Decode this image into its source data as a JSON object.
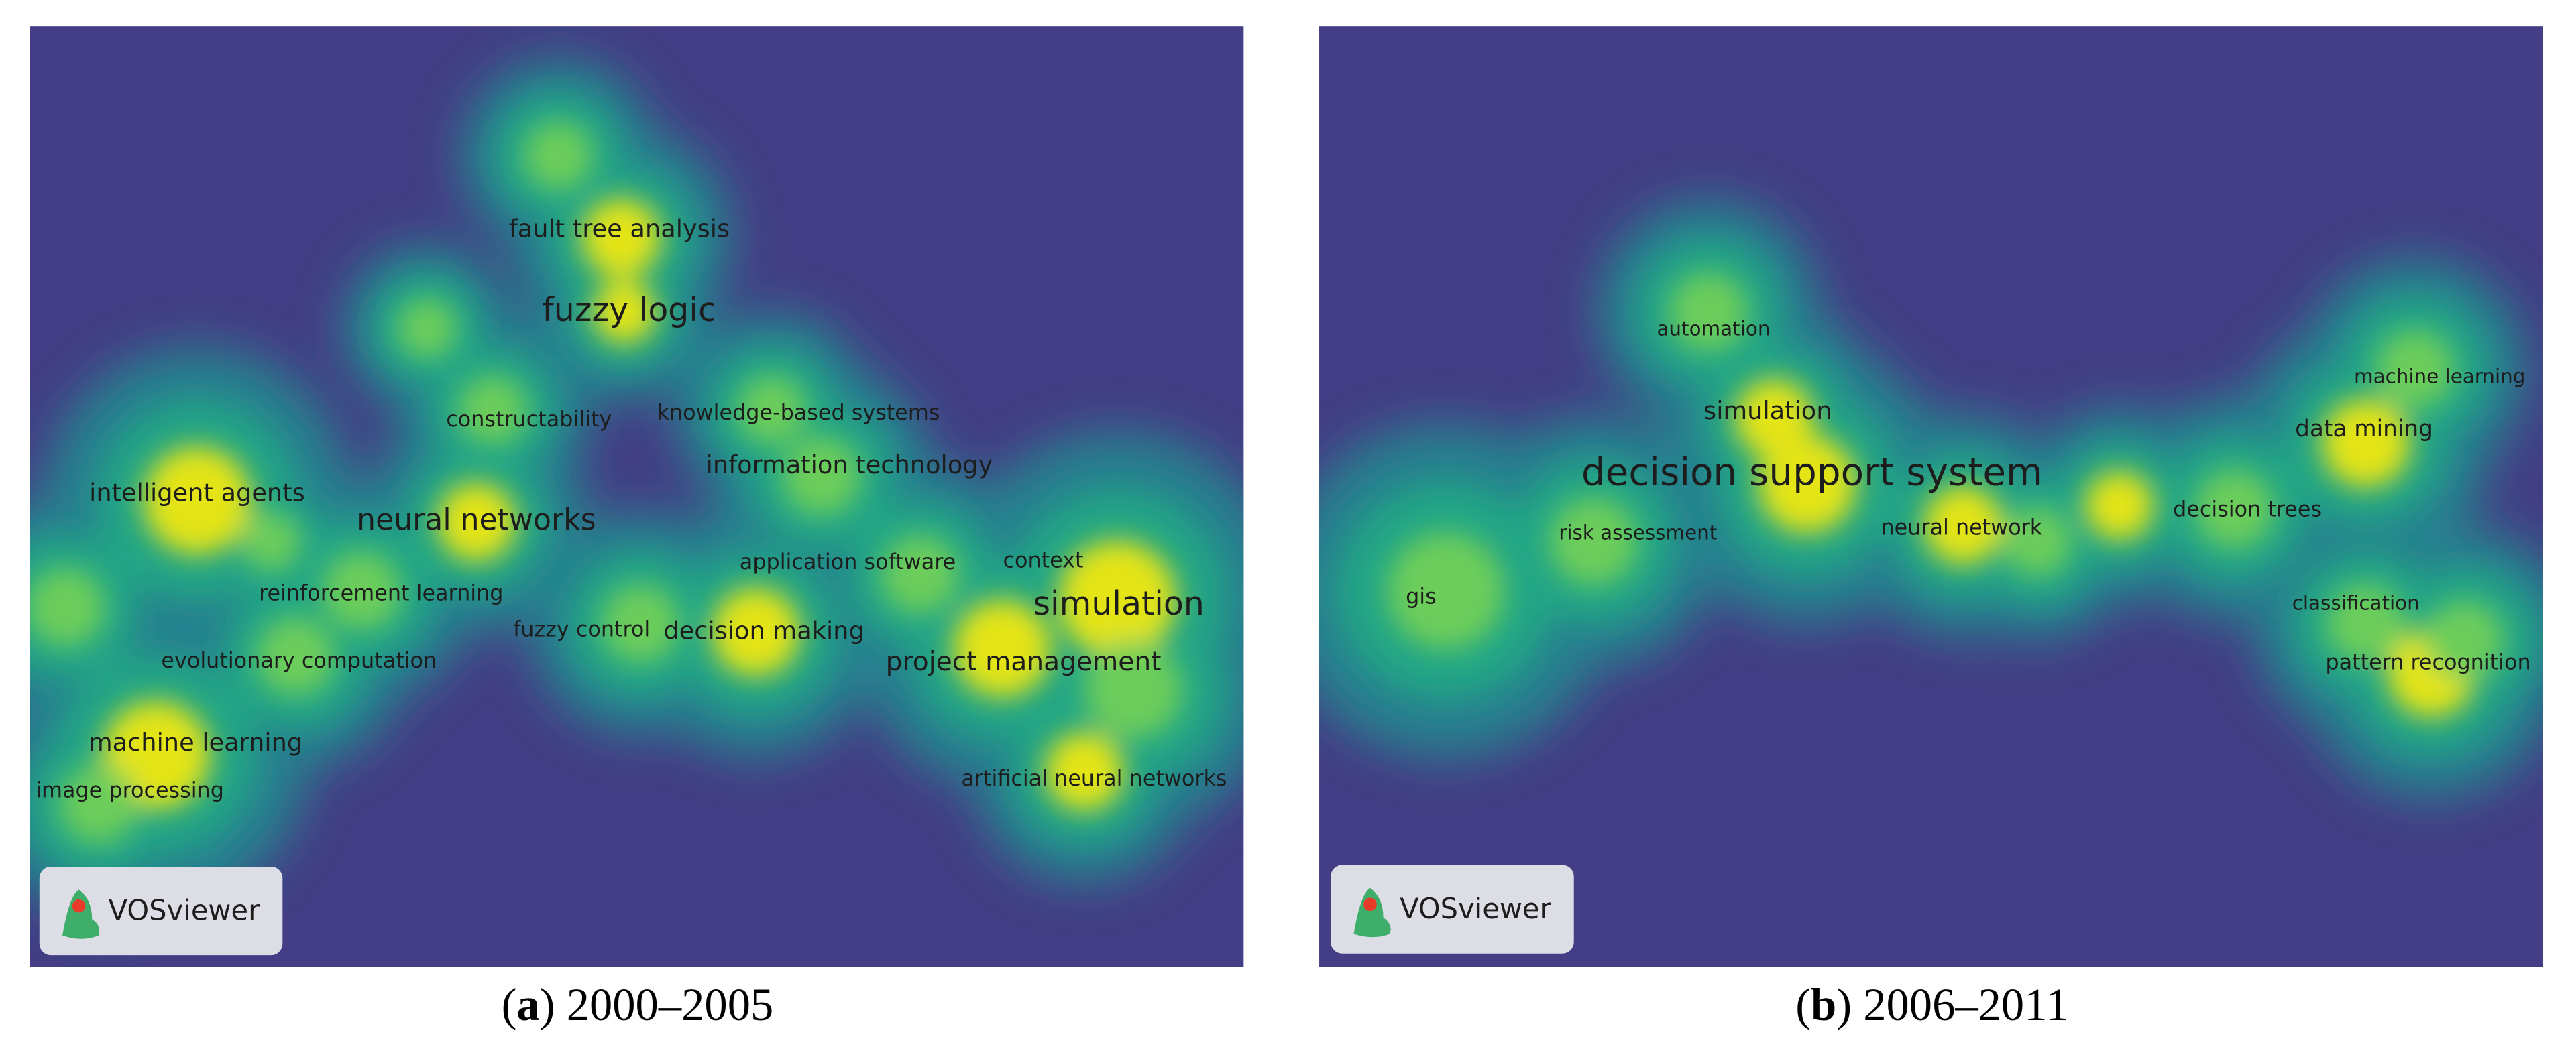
{
  "panels": [
    {
      "terms": [
        "fault tree analysis",
        "fuzzy logic",
        "constructability",
        "knowledge-based systems",
        "information technology",
        "intelligent agents",
        "neural networks",
        "application software",
        "context",
        "simulation",
        "reinforcement learning",
        "fuzzy control",
        "decision making",
        "project management",
        "evolutionary computation",
        "machine learning",
        "image processing",
        "artificial neural networks"
      ],
      "badge": "VOSviewer",
      "caption": {
        "open": "(",
        "letter": "a",
        "rest": ") 2000–2005"
      }
    },
    {
      "terms": [
        "automation",
        "machine learning",
        "simulation",
        "data mining",
        "decision support system",
        "risk assessment",
        "neural network",
        "decision trees",
        "gis",
        "classification",
        "pattern recognition"
      ],
      "badge": "VOSviewer",
      "caption": {
        "open": "(",
        "letter": "b",
        "rest": ") 2006–2011"
      }
    }
  ]
}
